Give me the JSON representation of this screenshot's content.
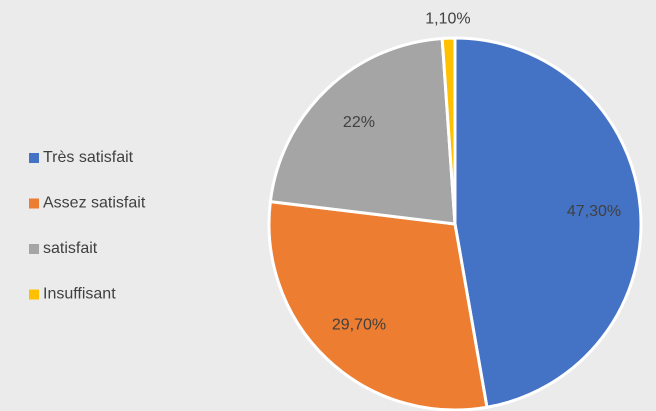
{
  "chart_data": {
    "type": "pie",
    "categories": [
      "Très satisfait",
      "Assez satisfait",
      "satisfait",
      "Insuffisant"
    ],
    "values": [
      47.3,
      29.7,
      22,
      1.1
    ],
    "value_labels": [
      "47,30%",
      "29,70%",
      "22%",
      "1,10%"
    ],
    "colors": [
      "#4472c4",
      "#ed7d31",
      "#a5a5a5",
      "#ffc000"
    ],
    "legend": "left"
  }
}
